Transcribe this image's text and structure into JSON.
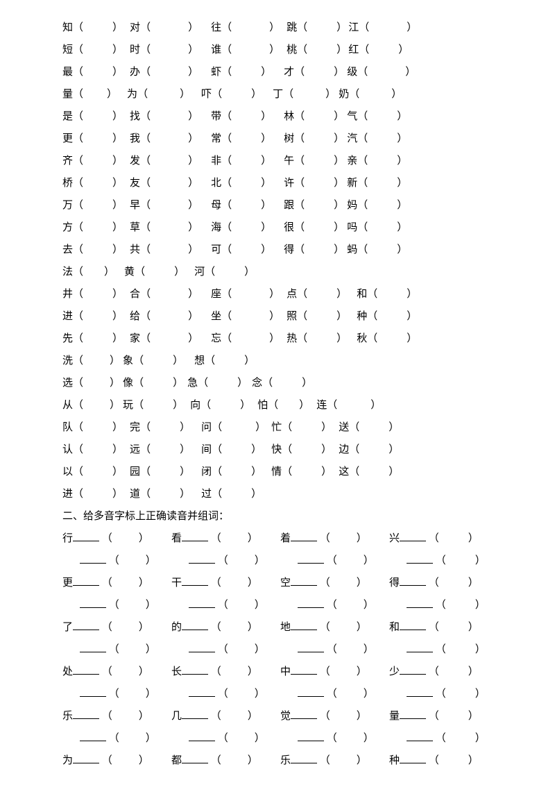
{
  "section1": {
    "rows": [
      [
        {
          "ch": "知",
          "p": "（",
          "gap": 42,
          "q": "）",
          "pad": 10
        },
        {
          "ch": "对",
          "p": "（",
          "gap": 54,
          "q": "）",
          "pad": 18
        },
        {
          "ch": "往",
          "p": "（",
          "gap": 54,
          "q": "）",
          "pad": 10
        },
        {
          "ch": "跳",
          "p": "（",
          "gap": 42,
          "q": "）",
          "pad": 2
        },
        {
          "ch": "江",
          "p": "（",
          "gap": 54,
          "q": "）",
          "pad": 0
        }
      ],
      [
        {
          "ch": "短",
          "p": "（",
          "gap": 42,
          "q": "）",
          "pad": 10
        },
        {
          "ch": "时",
          "p": "（",
          "gap": 54,
          "q": "）",
          "pad": 18
        },
        {
          "ch": "谁",
          "p": "（",
          "gap": 54,
          "q": "）",
          "pad": 10
        },
        {
          "ch": "桃",
          "p": "（",
          "gap": 42,
          "q": "）",
          "pad": 2
        },
        {
          "ch": "红",
          "p": "（",
          "gap": 42,
          "q": "）",
          "pad": 0
        }
      ],
      [
        {
          "ch": "最",
          "p": "（",
          "gap": 42,
          "q": "）",
          "pad": 10
        },
        {
          "ch": "办",
          "p": "（",
          "gap": 54,
          "q": "）",
          "pad": 18
        },
        {
          "ch": "虾",
          "p": "（",
          "gap": 42,
          "q": "）",
          "pad": 18
        },
        {
          "ch": "才",
          "p": "（",
          "gap": 42,
          "q": "）",
          "pad": 4
        },
        {
          "ch": "级",
          "p": "（",
          "gap": 54,
          "q": "）",
          "pad": 0
        }
      ],
      [
        {
          "ch": "量",
          "p": "（",
          "gap": 34,
          "q": "）",
          "pad": 14
        },
        {
          "ch": "为",
          "p": "（",
          "gap": 46,
          "q": "）",
          "pad": 16
        },
        {
          "ch": "吓",
          "p": "（",
          "gap": 42,
          "q": "）",
          "pad": 16
        },
        {
          "ch": "丁",
          "p": "（",
          "gap": 46,
          "q": "）",
          "pad": 4
        },
        {
          "ch": "奶",
          "p": "（",
          "gap": 46,
          "q": "）",
          "pad": 0
        }
      ],
      [
        {
          "ch": "是",
          "p": "（",
          "gap": 42,
          "q": "）",
          "pad": 10
        },
        {
          "ch": "找",
          "p": "（",
          "gap": 54,
          "q": "）",
          "pad": 18
        },
        {
          "ch": "带",
          "p": "（",
          "gap": 42,
          "q": "）",
          "pad": 18
        },
        {
          "ch": "林",
          "p": "（",
          "gap": 42,
          "q": "）",
          "pad": 4
        },
        {
          "ch": "气",
          "p": "（",
          "gap": 42,
          "q": "）",
          "pad": 0
        }
      ],
      [
        {
          "ch": "更",
          "p": "（",
          "gap": 42,
          "q": "）",
          "pad": 10
        },
        {
          "ch": "我",
          "p": "（",
          "gap": 54,
          "q": "）",
          "pad": 18
        },
        {
          "ch": "常",
          "p": "（",
          "gap": 42,
          "q": "）",
          "pad": 18
        },
        {
          "ch": "树",
          "p": "（",
          "gap": 42,
          "q": "）",
          "pad": 4
        },
        {
          "ch": "汽",
          "p": "（",
          "gap": 42,
          "q": "）",
          "pad": 0
        }
      ],
      [
        {
          "ch": "齐",
          "p": "（",
          "gap": 42,
          "q": "）",
          "pad": 10
        },
        {
          "ch": "发",
          "p": "（",
          "gap": 54,
          "q": "）",
          "pad": 18
        },
        {
          "ch": "非",
          "p": "（",
          "gap": 42,
          "q": "）",
          "pad": 18
        },
        {
          "ch": "午",
          "p": "（",
          "gap": 42,
          "q": "）",
          "pad": 4
        },
        {
          "ch": "亲",
          "p": "（",
          "gap": 42,
          "q": "）",
          "pad": 0
        }
      ],
      [
        {
          "ch": "桥",
          "p": "（",
          "gap": 42,
          "q": "）",
          "pad": 10
        },
        {
          "ch": "友",
          "p": "（",
          "gap": 54,
          "q": "）",
          "pad": 18
        },
        {
          "ch": "北",
          "p": "（",
          "gap": 42,
          "q": "）",
          "pad": 18
        },
        {
          "ch": "许",
          "p": "（",
          "gap": 42,
          "q": "）",
          "pad": 4
        },
        {
          "ch": "新",
          "p": "（",
          "gap": 42,
          "q": "）",
          "pad": 0
        }
      ],
      [
        {
          "ch": "万",
          "p": "（",
          "gap": 42,
          "q": "）",
          "pad": 10
        },
        {
          "ch": "早",
          "p": "（",
          "gap": 54,
          "q": "）",
          "pad": 18
        },
        {
          "ch": "母",
          "p": "（",
          "gap": 42,
          "q": "）",
          "pad": 18
        },
        {
          "ch": "跟",
          "p": "（",
          "gap": 42,
          "q": "）",
          "pad": 4
        },
        {
          "ch": "妈",
          "p": "（",
          "gap": 42,
          "q": "）",
          "pad": 0
        }
      ],
      [
        {
          "ch": "方",
          "p": "（",
          "gap": 42,
          "q": "）",
          "pad": 10
        },
        {
          "ch": "草",
          "p": "（",
          "gap": 54,
          "q": "）",
          "pad": 18
        },
        {
          "ch": "海",
          "p": "（",
          "gap": 42,
          "q": "）",
          "pad": 18
        },
        {
          "ch": "很",
          "p": "（",
          "gap": 42,
          "q": "）",
          "pad": 4
        },
        {
          "ch": "吗",
          "p": "（",
          "gap": 42,
          "q": "）",
          "pad": 0
        }
      ],
      [
        {
          "ch": "去",
          "p": "（",
          "gap": 42,
          "q": "）",
          "pad": 10
        },
        {
          "ch": "共",
          "p": "（",
          "gap": 54,
          "q": "）",
          "pad": 18
        },
        {
          "ch": "可",
          "p": "（",
          "gap": 42,
          "q": "）",
          "pad": 18
        },
        {
          "ch": "得",
          "p": "（",
          "gap": 42,
          "q": "）",
          "pad": 4
        },
        {
          "ch": "蚂",
          "p": "（",
          "gap": 42,
          "q": "）",
          "pad": 0
        }
      ],
      [
        {
          "ch": "法",
          "p": "（",
          "gap": 30,
          "q": "）",
          "pad": 14
        },
        {
          "ch": "黄",
          "p": "（",
          "gap": 42,
          "q": "）",
          "pad": 14
        },
        {
          "ch": "河",
          "p": "（",
          "gap": 42,
          "q": "）",
          "pad": 0
        }
      ],
      [
        {
          "ch": "井",
          "p": "（",
          "gap": 42,
          "q": "）",
          "pad": 10
        },
        {
          "ch": "合",
          "p": "（",
          "gap": 54,
          "q": "）",
          "pad": 18
        },
        {
          "ch": "座",
          "p": "（",
          "gap": 54,
          "q": "）",
          "pad": 10
        },
        {
          "ch": "点",
          "p": "（",
          "gap": 42,
          "q": "）",
          "pad": 14
        },
        {
          "ch": "和",
          "p": "（",
          "gap": 42,
          "q": "）",
          "pad": 0
        }
      ],
      [
        {
          "ch": "进",
          "p": "（",
          "gap": 42,
          "q": "）",
          "pad": 10
        },
        {
          "ch": "给",
          "p": "（",
          "gap": 54,
          "q": "）",
          "pad": 18
        },
        {
          "ch": "坐",
          "p": "（",
          "gap": 54,
          "q": "）",
          "pad": 10
        },
        {
          "ch": "照",
          "p": "（",
          "gap": 42,
          "q": "）",
          "pad": 14
        },
        {
          "ch": "种",
          "p": "（",
          "gap": 42,
          "q": "）",
          "pad": 0
        }
      ],
      [
        {
          "ch": "先",
          "p": "（",
          "gap": 42,
          "q": "）",
          "pad": 10
        },
        {
          "ch": "家",
          "p": "（",
          "gap": 54,
          "q": "）",
          "pad": 18
        },
        {
          "ch": "忘",
          "p": "（",
          "gap": 54,
          "q": "）",
          "pad": 10
        },
        {
          "ch": "热",
          "p": "（",
          "gap": 42,
          "q": "）",
          "pad": 14
        },
        {
          "ch": "秋",
          "p": "（",
          "gap": 42,
          "q": "）",
          "pad": 0
        }
      ],
      [
        {
          "ch": "洗",
          "p": "（",
          "gap": 38,
          "q": "）",
          "pad": 4
        },
        {
          "ch": "象",
          "p": "（",
          "gap": 42,
          "q": "）",
          "pad": 16
        },
        {
          "ch": "想",
          "p": "（",
          "gap": 42,
          "q": "）",
          "pad": 0
        }
      ],
      [
        {
          "ch": "选",
          "p": "（",
          "gap": 38,
          "q": "）",
          "pad": 4
        },
        {
          "ch": "像",
          "p": "（",
          "gap": 42,
          "q": "）",
          "pad": 6
        },
        {
          "ch": "急",
          "p": "（",
          "gap": 42,
          "q": "）",
          "pad": 6
        },
        {
          "ch": "念",
          "p": "（",
          "gap": 42,
          "q": "）",
          "pad": 0
        }
      ],
      [
        {
          "ch": "从",
          "p": "（",
          "gap": 38,
          "q": "）",
          "pad": 4
        },
        {
          "ch": "玩",
          "p": "（",
          "gap": 42,
          "q": "）",
          "pad": 10
        },
        {
          "ch": "向",
          "p": "（",
          "gap": 42,
          "q": "）",
          "pad": 10
        },
        {
          "ch": "怕",
          "p": "（",
          "gap": 30,
          "q": "）",
          "pad": 10
        },
        {
          "ch": "连",
          "p": "（",
          "gap": 48,
          "q": "）",
          "pad": 0
        }
      ],
      [
        {
          "ch": "队",
          "p": "（",
          "gap": 42,
          "q": "）",
          "pad": 10
        },
        {
          "ch": "完",
          "p": "（",
          "gap": 42,
          "q": "）",
          "pad": 16
        },
        {
          "ch": "问",
          "p": "（",
          "gap": 48,
          "q": "）",
          "pad": 8
        },
        {
          "ch": "忙",
          "p": "（",
          "gap": 42,
          "q": "）",
          "pad": 10
        },
        {
          "ch": "送",
          "p": "（",
          "gap": 42,
          "q": "）",
          "pad": 0
        }
      ],
      [
        {
          "ch": "认",
          "p": "（",
          "gap": 42,
          "q": "）",
          "pad": 10
        },
        {
          "ch": "远",
          "p": "（",
          "gap": 42,
          "q": "）",
          "pad": 16
        },
        {
          "ch": "间",
          "p": "（",
          "gap": 42,
          "q": "）",
          "pad": 14
        },
        {
          "ch": "快",
          "p": "（",
          "gap": 42,
          "q": "）",
          "pad": 10
        },
        {
          "ch": "边",
          "p": "（",
          "gap": 42,
          "q": "）",
          "pad": 0
        }
      ],
      [
        {
          "ch": "以",
          "p": "（",
          "gap": 42,
          "q": "）",
          "pad": 10
        },
        {
          "ch": "园",
          "p": "（",
          "gap": 42,
          "q": "）",
          "pad": 16
        },
        {
          "ch": "闭",
          "p": "（",
          "gap": 42,
          "q": "）",
          "pad": 14
        },
        {
          "ch": "情",
          "p": "（",
          "gap": 42,
          "q": "）",
          "pad": 10
        },
        {
          "ch": "这",
          "p": "（",
          "gap": 42,
          "q": "）",
          "pad": 0
        }
      ],
      [
        {
          "ch": "进",
          "p": "（",
          "gap": 42,
          "q": "）",
          "pad": 10
        },
        {
          "ch": "道",
          "p": "（",
          "gap": 42,
          "q": "）",
          "pad": 16
        },
        {
          "ch": "过",
          "p": "（",
          "gap": 42,
          "q": "）",
          "pad": 0
        }
      ]
    ]
  },
  "section2": {
    "title": "二、给多音字标上正确读音并组词：",
    "groups": [
      [
        "行",
        "看",
        "着",
        "兴"
      ],
      [
        "更",
        "干",
        "空",
        "得"
      ],
      [
        "了",
        "的",
        "地",
        "和"
      ],
      [
        "处",
        "长",
        "中",
        "少"
      ],
      [
        "乐",
        "几",
        "觉",
        "量"
      ],
      [
        "为",
        "都",
        "乐",
        "种"
      ]
    ],
    "paren_open": "（",
    "paren_close": "）"
  }
}
